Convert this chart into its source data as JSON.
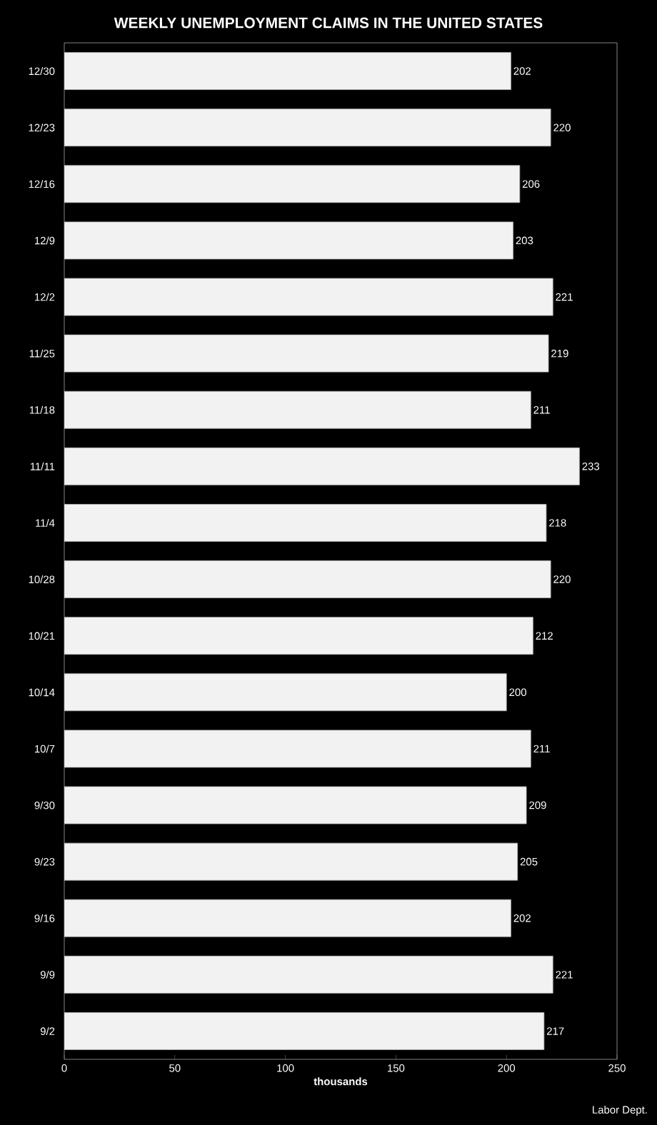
{
  "chart_data": {
    "type": "bar",
    "orientation": "horizontal",
    "title": "WEEKLY UNEMPLOYMENT CLAIMS IN THE UNITED STATES",
    "xlabel": "thousands",
    "categories": [
      "12/30",
      "12/23",
      "12/16",
      "12/9",
      "12/2",
      "11/25",
      "11/18",
      "11/11",
      "11/4",
      "10/28",
      "10/21",
      "10/14",
      "10/7",
      "9/30",
      "9/23",
      "9/16",
      "9/9",
      "9/2"
    ],
    "values": [
      202,
      220,
      206,
      203,
      221,
      219,
      211,
      233,
      218,
      220,
      212,
      200,
      211,
      209,
      205,
      202,
      221,
      217
    ],
    "color": "#f2f2f2",
    "xlim": [
      0,
      250
    ],
    "xticks": [
      0,
      50,
      100,
      150,
      200,
      250
    ],
    "data_labels": true,
    "grid": false,
    "annotations": [
      "Labor Dept."
    ]
  }
}
